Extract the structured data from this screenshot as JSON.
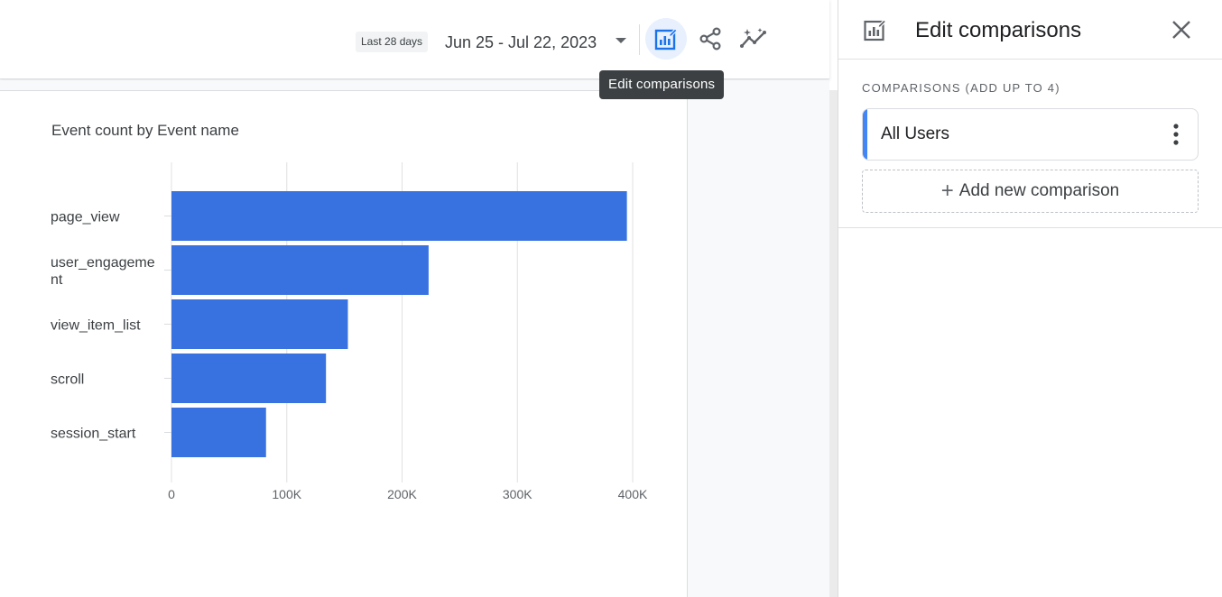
{
  "header": {
    "date_preset": "Last 28 days",
    "date_range": "Jun 25 - Jul 22, 2023",
    "buttons": [
      {
        "name": "edit-comparisons",
        "icon": "edit-comparisons-icon",
        "active": true
      },
      {
        "name": "share",
        "icon": "share-icon",
        "active": false
      },
      {
        "name": "insights",
        "icon": "insights-icon",
        "active": false
      }
    ],
    "tooltip": "Edit comparisons"
  },
  "card": {
    "title": "Event count by Event name"
  },
  "chart_data": {
    "type": "bar",
    "orientation": "horizontal",
    "title": "Event count by Event name",
    "categories": [
      "page_view",
      "user_engageme\nnt",
      "view_item_list",
      "scroll",
      "session_start"
    ],
    "values": [
      395000,
      223000,
      153000,
      134000,
      82000
    ],
    "xlim": [
      0,
      400000
    ],
    "x_ticks": [
      0,
      100000,
      200000,
      300000,
      400000
    ],
    "x_tick_labels": [
      "0",
      "100K",
      "200K",
      "300K",
      "400K"
    ],
    "grid": "vertical",
    "color": "#3871e0"
  },
  "panel": {
    "title": "Edit comparisons",
    "section_label": "COMPARISONS (ADD UP TO 4)",
    "comparisons": [
      {
        "label": "All Users",
        "accent": "#4285f4"
      }
    ],
    "add_label": "Add new comparison"
  }
}
